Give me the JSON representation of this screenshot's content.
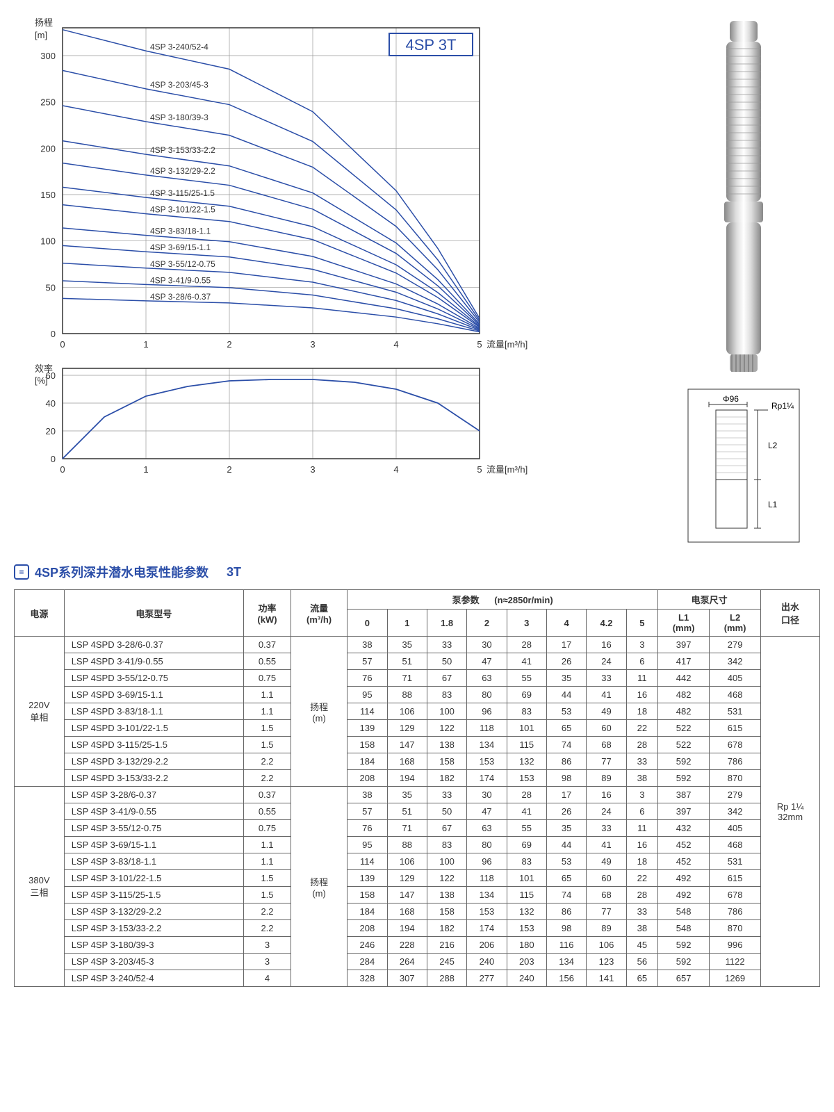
{
  "model_label": "4SP 3T",
  "head_chart": {
    "y_label_top": "扬程",
    "y_label_unit": "[m]",
    "x_label": "流量[m³/h]",
    "x_max": 5,
    "y_max": 330,
    "y_ticks": [
      0,
      50,
      100,
      150,
      200,
      250,
      300
    ],
    "x_ticks": [
      0,
      1,
      2,
      3,
      4,
      5
    ],
    "curve_color": "#2b4ea8",
    "grid_color": "#999",
    "curves": [
      {
        "label": "4SP 3-240/52-4",
        "y0": 328
      },
      {
        "label": "4SP 3-203/45-3",
        "y0": 284
      },
      {
        "label": "4SP 3-180/39-3",
        "y0": 246
      },
      {
        "label": "4SP 3-153/33-2.2",
        "y0": 208
      },
      {
        "label": "4SP 3-132/29-2.2",
        "y0": 184
      },
      {
        "label": "4SP 3-115/25-1.5",
        "y0": 158
      },
      {
        "label": "4SP 3-101/22-1.5",
        "y0": 139
      },
      {
        "label": "4SP 3-83/18-1.1",
        "y0": 114
      },
      {
        "label": "4SP 3-69/15-1.1",
        "y0": 95
      },
      {
        "label": "4SP 3-55/12-0.75",
        "y0": 76
      },
      {
        "label": "4SP 3-41/9-0.55",
        "y0": 57
      },
      {
        "label": "4SP 3-28/6-0.37",
        "y0": 38
      }
    ]
  },
  "eff_chart": {
    "y_label_top": "效率",
    "y_label_unit": "[%]",
    "x_label": "流量[m³/h]",
    "y_ticks": [
      0,
      20,
      40,
      60
    ],
    "x_ticks": [
      0,
      1,
      2,
      3,
      4,
      5
    ],
    "curve_color": "#2b4ea8",
    "grid_color": "#999",
    "points": [
      [
        0,
        0
      ],
      [
        0.5,
        30
      ],
      [
        1,
        45
      ],
      [
        1.5,
        52
      ],
      [
        2,
        56
      ],
      [
        2.5,
        57
      ],
      [
        3,
        57
      ],
      [
        3.5,
        55
      ],
      [
        4,
        50
      ],
      [
        4.5,
        40
      ],
      [
        5,
        20
      ]
    ]
  },
  "pump_diagram": {
    "phi": "Φ96",
    "thread": "Rp1¼",
    "L1": "L1",
    "L2": "L2"
  },
  "section_title_main": "4SP系列深井潜水电泵性能参数",
  "section_title_suffix": "3T",
  "table": {
    "headers": {
      "power_source": "电源",
      "model": "电泵型号",
      "kw": "功率\n(kW)",
      "flow": "流量\n(m³/h)",
      "pump_params": "泵参数",
      "rpm": "(n≈2850r/min)",
      "size": "电泵尺寸",
      "L1": "L1\n(mm)",
      "L2": "L2\n(mm)",
      "outlet": "出水\n口径",
      "head": "扬程\n(m)",
      "flow_cols": [
        "0",
        "1",
        "1.8",
        "2",
        "3",
        "4",
        "4.2",
        "5"
      ]
    },
    "outlet_text": "Rp 1¼\n32mm",
    "groups": [
      {
        "source": "220V\n单相",
        "rows": [
          {
            "m": "LSP 4SPD 3-28/6-0.37",
            "kw": "0.37",
            "h": [
              "38",
              "35",
              "33",
              "30",
              "28",
              "17",
              "16",
              "3"
            ],
            "L1": "397",
            "L2": "279"
          },
          {
            "m": "LSP 4SPD 3-41/9-0.55",
            "kw": "0.55",
            "h": [
              "57",
              "51",
              "50",
              "47",
              "41",
              "26",
              "24",
              "6"
            ],
            "L1": "417",
            "L2": "342"
          },
          {
            "m": "LSP 4SPD 3-55/12-0.75",
            "kw": "0.75",
            "h": [
              "76",
              "71",
              "67",
              "63",
              "55",
              "35",
              "33",
              "11"
            ],
            "L1": "442",
            "L2": "405"
          },
          {
            "m": "LSP 4SPD 3-69/15-1.1",
            "kw": "1.1",
            "h": [
              "95",
              "88",
              "83",
              "80",
              "69",
              "44",
              "41",
              "16"
            ],
            "L1": "482",
            "L2": "468"
          },
          {
            "m": "LSP 4SPD 3-83/18-1.1",
            "kw": "1.1",
            "h": [
              "114",
              "106",
              "100",
              "96",
              "83",
              "53",
              "49",
              "18"
            ],
            "L1": "482",
            "L2": "531"
          },
          {
            "m": "LSP 4SPD 3-101/22-1.5",
            "kw": "1.5",
            "h": [
              "139",
              "129",
              "122",
              "118",
              "101",
              "65",
              "60",
              "22"
            ],
            "L1": "522",
            "L2": "615"
          },
          {
            "m": "LSP 4SPD 3-115/25-1.5",
            "kw": "1.5",
            "h": [
              "158",
              "147",
              "138",
              "134",
              "115",
              "74",
              "68",
              "28"
            ],
            "L1": "522",
            "L2": "678"
          },
          {
            "m": "LSP 4SPD 3-132/29-2.2",
            "kw": "2.2",
            "h": [
              "184",
              "168",
              "158",
              "153",
              "132",
              "86",
              "77",
              "33"
            ],
            "L1": "592",
            "L2": "786"
          },
          {
            "m": "LSP 4SPD 3-153/33-2.2",
            "kw": "2.2",
            "h": [
              "208",
              "194",
              "182",
              "174",
              "153",
              "98",
              "89",
              "38"
            ],
            "L1": "592",
            "L2": "870"
          }
        ]
      },
      {
        "source": "380V\n三相",
        "rows": [
          {
            "m": "LSP 4SP 3-28/6-0.37",
            "kw": "0.37",
            "h": [
              "38",
              "35",
              "33",
              "30",
              "28",
              "17",
              "16",
              "3"
            ],
            "L1": "387",
            "L2": "279"
          },
          {
            "m": "LSP 4SP 3-41/9-0.55",
            "kw": "0.55",
            "h": [
              "57",
              "51",
              "50",
              "47",
              "41",
              "26",
              "24",
              "6"
            ],
            "L1": "397",
            "L2": "342"
          },
          {
            "m": "LSP 4SP 3-55/12-0.75",
            "kw": "0.75",
            "h": [
              "76",
              "71",
              "67",
              "63",
              "55",
              "35",
              "33",
              "11"
            ],
            "L1": "432",
            "L2": "405"
          },
          {
            "m": "LSP 4SP 3-69/15-1.1",
            "kw": "1.1",
            "h": [
              "95",
              "88",
              "83",
              "80",
              "69",
              "44",
              "41",
              "16"
            ],
            "L1": "452",
            "L2": "468"
          },
          {
            "m": "LSP 4SP 3-83/18-1.1",
            "kw": "1.1",
            "h": [
              "114",
              "106",
              "100",
              "96",
              "83",
              "53",
              "49",
              "18"
            ],
            "L1": "452",
            "L2": "531"
          },
          {
            "m": "LSP 4SP 3-101/22-1.5",
            "kw": "1.5",
            "h": [
              "139",
              "129",
              "122",
              "118",
              "101",
              "65",
              "60",
              "22"
            ],
            "L1": "492",
            "L2": "615"
          },
          {
            "m": "LSP 4SP 3-115/25-1.5",
            "kw": "1.5",
            "h": [
              "158",
              "147",
              "138",
              "134",
              "115",
              "74",
              "68",
              "28"
            ],
            "L1": "492",
            "L2": "678"
          },
          {
            "m": "LSP 4SP 3-132/29-2.2",
            "kw": "2.2",
            "h": [
              "184",
              "168",
              "158",
              "153",
              "132",
              "86",
              "77",
              "33"
            ],
            "L1": "548",
            "L2": "786"
          },
          {
            "m": "LSP 4SP 3-153/33-2.2",
            "kw": "2.2",
            "h": [
              "208",
              "194",
              "182",
              "174",
              "153",
              "98",
              "89",
              "38"
            ],
            "L1": "548",
            "L2": "870"
          },
          {
            "m": "LSP 4SP 3-180/39-3",
            "kw": "3",
            "h": [
              "246",
              "228",
              "216",
              "206",
              "180",
              "116",
              "106",
              "45"
            ],
            "L1": "592",
            "L2": "996"
          },
          {
            "m": "LSP 4SP 3-203/45-3",
            "kw": "3",
            "h": [
              "284",
              "264",
              "245",
              "240",
              "203",
              "134",
              "123",
              "56"
            ],
            "L1": "592",
            "L2": "1122"
          },
          {
            "m": "LSP 4SP 3-240/52-4",
            "kw": "4",
            "h": [
              "328",
              "307",
              "288",
              "277",
              "240",
              "156",
              "141",
              "65"
            ],
            "L1": "657",
            "L2": "1269"
          }
        ]
      }
    ]
  }
}
